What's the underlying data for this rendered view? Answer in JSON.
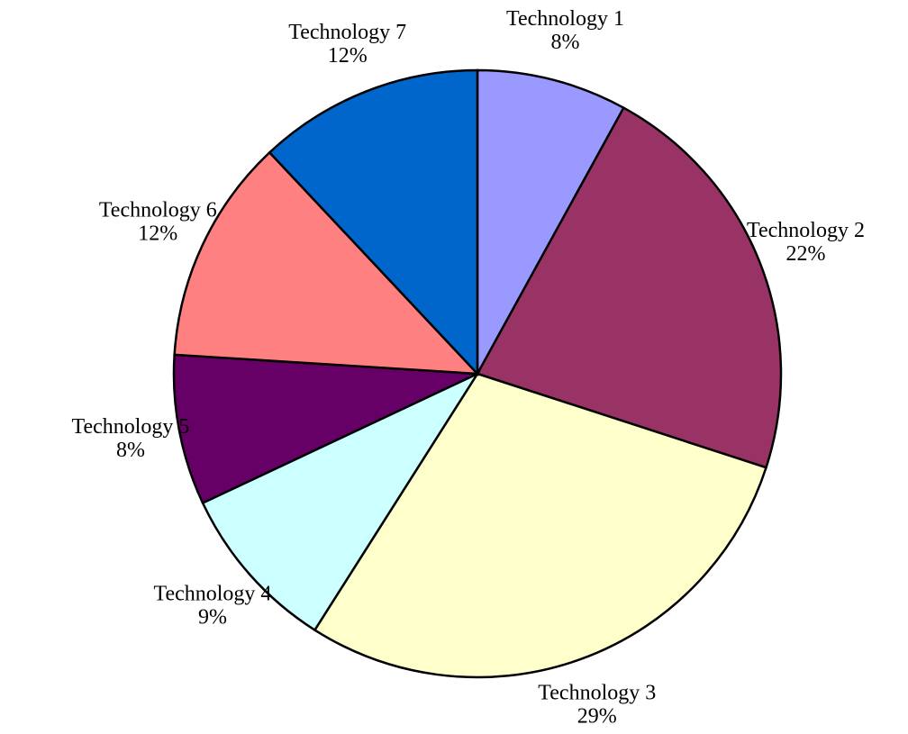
{
  "chart_data": {
    "type": "pie",
    "categories": [
      "Technology 1",
      "Technology 2",
      "Technology 3",
      "Technology 4",
      "Technology 5",
      "Technology 6",
      "Technology 7"
    ],
    "values": [
      8,
      22,
      29,
      9,
      8,
      12,
      12
    ],
    "value_labels": [
      "8%",
      "22%",
      "29%",
      "9%",
      "8%",
      "12%",
      "12%"
    ],
    "colors": [
      "#9999ff",
      "#993366",
      "#ffffcc",
      "#ccffff",
      "#660066",
      "#ff8080",
      "#0066cc"
    ]
  }
}
